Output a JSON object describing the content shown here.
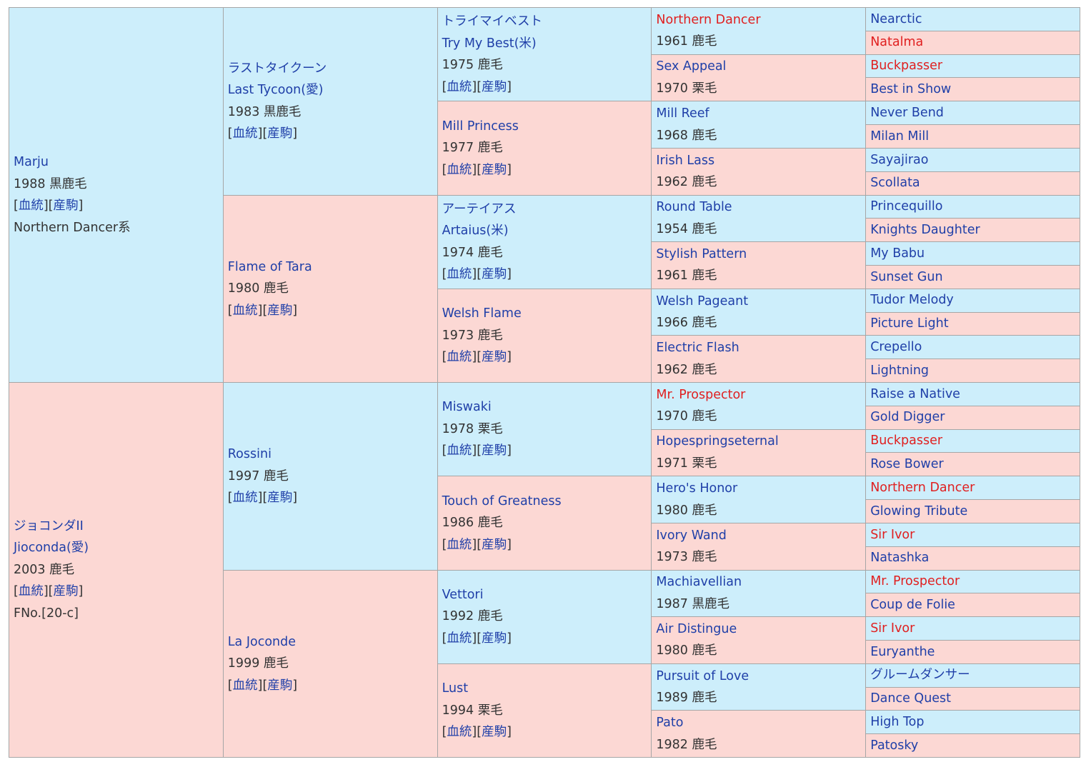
{
  "gen1": [
    {
      "sex": "m",
      "lines": [
        {
          "t": "Marju",
          "link": true
        },
        {
          "t": "1988 黒鹿毛"
        },
        {
          "t": "links"
        },
        {
          "t": "Northern Dancer系"
        }
      ]
    },
    {
      "sex": "f",
      "lines": [
        {
          "t": "ジョコンダII",
          "link": true
        },
        {
          "t": "Jioconda(愛)",
          "link": true
        },
        {
          "t": "2003 鹿毛"
        },
        {
          "t": "links"
        },
        {
          "t": "FNo.[20-c]"
        }
      ]
    }
  ],
  "gen2": [
    {
      "sex": "m",
      "lines": [
        {
          "t": "ラストタイクーン",
          "link": true
        },
        {
          "t": "Last Tycoon(愛)",
          "link": true
        },
        {
          "t": "1983 黒鹿毛"
        },
        {
          "t": "links"
        }
      ]
    },
    {
      "sex": "f",
      "lines": [
        {
          "t": "Flame of Tara",
          "link": true
        },
        {
          "t": "1980 鹿毛"
        },
        {
          "t": "links"
        }
      ]
    },
    {
      "sex": "m",
      "lines": [
        {
          "t": "Rossini",
          "link": true
        },
        {
          "t": "1997 鹿毛"
        },
        {
          "t": "links"
        }
      ]
    },
    {
      "sex": "f",
      "lines": [
        {
          "t": "La Joconde",
          "link": true
        },
        {
          "t": "1999 鹿毛"
        },
        {
          "t": "links"
        }
      ]
    }
  ],
  "gen3": [
    {
      "sex": "m",
      "lines": [
        {
          "t": "トライマイベスト",
          "link": true
        },
        {
          "t": "Try My Best(米)",
          "link": true
        },
        {
          "t": "1975 鹿毛"
        },
        {
          "t": "links"
        }
      ]
    },
    {
      "sex": "f",
      "lines": [
        {
          "t": "Mill Princess",
          "link": true
        },
        {
          "t": "1977 鹿毛"
        },
        {
          "t": "links"
        }
      ]
    },
    {
      "sex": "m",
      "lines": [
        {
          "t": "アーテイアス",
          "link": true
        },
        {
          "t": "Artaius(米)",
          "link": true
        },
        {
          "t": "1974 鹿毛"
        },
        {
          "t": "links"
        }
      ]
    },
    {
      "sex": "f",
      "lines": [
        {
          "t": "Welsh Flame",
          "link": true
        },
        {
          "t": "1973 鹿毛"
        },
        {
          "t": "links"
        }
      ]
    },
    {
      "sex": "m",
      "lines": [
        {
          "t": "Miswaki",
          "link": true
        },
        {
          "t": "1978 栗毛"
        },
        {
          "t": "links"
        }
      ]
    },
    {
      "sex": "f",
      "lines": [
        {
          "t": "Touch of Greatness",
          "link": true
        },
        {
          "t": "1986 鹿毛"
        },
        {
          "t": "links"
        }
      ]
    },
    {
      "sex": "m",
      "lines": [
        {
          "t": "Vettori",
          "link": true
        },
        {
          "t": "1992 鹿毛"
        },
        {
          "t": "links"
        }
      ]
    },
    {
      "sex": "f",
      "lines": [
        {
          "t": "Lust",
          "link": true
        },
        {
          "t": "1994 栗毛"
        },
        {
          "t": "links"
        }
      ]
    }
  ],
  "gen4": [
    {
      "sex": "m",
      "name": "Northern Dancer",
      "red": true,
      "info": "1961 鹿毛"
    },
    {
      "sex": "f",
      "name": "Sex Appeal",
      "red": false,
      "info": "1970 栗毛"
    },
    {
      "sex": "m",
      "name": "Mill Reef",
      "red": false,
      "info": "1968 鹿毛"
    },
    {
      "sex": "f",
      "name": "Irish Lass",
      "red": false,
      "info": "1962 鹿毛"
    },
    {
      "sex": "m",
      "name": "Round Table",
      "red": false,
      "info": "1954 鹿毛"
    },
    {
      "sex": "f",
      "name": "Stylish Pattern",
      "red": false,
      "info": "1961 鹿毛"
    },
    {
      "sex": "m",
      "name": "Welsh Pageant",
      "red": false,
      "info": "1966 鹿毛"
    },
    {
      "sex": "f",
      "name": "Electric Flash",
      "red": false,
      "info": "1962 鹿毛"
    },
    {
      "sex": "m",
      "name": "Mr. Prospector",
      "red": true,
      "info": "1970 鹿毛"
    },
    {
      "sex": "f",
      "name": "Hopespringseternal",
      "red": false,
      "info": "1971 栗毛"
    },
    {
      "sex": "m",
      "name": "Hero's Honor",
      "red": false,
      "info": "1980 鹿毛"
    },
    {
      "sex": "f",
      "name": "Ivory Wand",
      "red": false,
      "info": "1973 鹿毛"
    },
    {
      "sex": "m",
      "name": "Machiavellian",
      "red": false,
      "info": "1987 黒鹿毛"
    },
    {
      "sex": "f",
      "name": "Air Distingue",
      "red": false,
      "info": "1980 鹿毛"
    },
    {
      "sex": "m",
      "name": "Pursuit of Love",
      "red": false,
      "info": "1989 鹿毛"
    },
    {
      "sex": "f",
      "name": "Pato",
      "red": false,
      "info": "1982 鹿毛"
    }
  ],
  "gen5": [
    {
      "name": "Nearctic",
      "red": false
    },
    {
      "name": "Natalma",
      "red": true
    },
    {
      "name": "Buckpasser",
      "red": true
    },
    {
      "name": "Best in Show",
      "red": false
    },
    {
      "name": "Never Bend",
      "red": false
    },
    {
      "name": "Milan Mill",
      "red": false
    },
    {
      "name": "Sayajirao",
      "red": false
    },
    {
      "name": "Scollata",
      "red": false
    },
    {
      "name": "Princequillo",
      "red": false
    },
    {
      "name": "Knights Daughter",
      "red": false
    },
    {
      "name": "My Babu",
      "red": false
    },
    {
      "name": "Sunset Gun",
      "red": false
    },
    {
      "name": "Tudor Melody",
      "red": false
    },
    {
      "name": "Picture Light",
      "red": false
    },
    {
      "name": "Crepello",
      "red": false
    },
    {
      "name": "Lightning",
      "red": false
    },
    {
      "name": "Raise a Native",
      "red": false
    },
    {
      "name": "Gold Digger",
      "red": false
    },
    {
      "name": "Buckpasser",
      "red": true
    },
    {
      "name": "Rose Bower",
      "red": false
    },
    {
      "name": "Northern Dancer",
      "red": true
    },
    {
      "name": "Glowing Tribute",
      "red": false
    },
    {
      "name": "Sir Ivor",
      "red": true
    },
    {
      "name": "Natashka",
      "red": false
    },
    {
      "name": "Mr. Prospector",
      "red": true
    },
    {
      "name": "Coup de Folie",
      "red": false
    },
    {
      "name": "Sir Ivor",
      "red": true
    },
    {
      "name": "Euryanthe",
      "red": false
    },
    {
      "name": "グルームダンサー",
      "red": false
    },
    {
      "name": "Dance Quest",
      "red": false
    },
    {
      "name": "High Top",
      "red": false
    },
    {
      "name": "Patosky",
      "red": false
    }
  ],
  "links": {
    "open": "[",
    "pedigree": "血統",
    "mid": "][",
    "progeny": "産駒",
    "close": "]"
  },
  "colors": {
    "male_bg": "#cdeefb",
    "female_bg": "#fcd8d4",
    "link": "#1f3fa8",
    "highlight": "#e02020",
    "border": "#a6a6a6"
  }
}
